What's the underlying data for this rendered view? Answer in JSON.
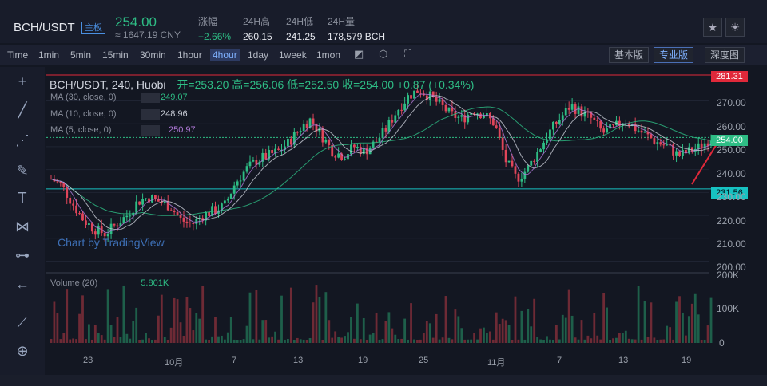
{
  "header": {
    "pair": "BCH/USDT",
    "badge": "主板",
    "price": "254.00",
    "cny": "≈ 1647.19 CNY",
    "stats": [
      {
        "label": "涨幅",
        "value": "+2.66%"
      },
      {
        "label": "24H高",
        "value": "260.15"
      },
      {
        "label": "24H低",
        "value": "241.25"
      },
      {
        "label": "24H量",
        "value": "178,579 BCH"
      }
    ]
  },
  "toolbar": {
    "timeframes": [
      "Time",
      "1min",
      "5min",
      "15min",
      "30min",
      "1hour",
      "4hour",
      "1day",
      "1week",
      "1mon"
    ],
    "active": "4hour",
    "views": [
      "基本版",
      "专业版",
      "深度图"
    ],
    "active_view": "专业版"
  },
  "legend": {
    "title": "BCH/USDT, 240, Huobi",
    "ohlc": "开=253.20  高=256.06  低=252.50  收=254.00  +0.87 (+0.34%)",
    "mas": [
      {
        "label": "MA (30, close, 0)",
        "value": "249.07",
        "color": "#2ebd85"
      },
      {
        "label": "MA (10, close, 0)",
        "value": "248.96",
        "color": "#c8ccd6"
      },
      {
        "label": "MA (5, close, 0)",
        "value": "250.97",
        "color": "#b07ad8"
      }
    ],
    "volume_label": "Volume (20)",
    "volume_value": "5.801K",
    "watermark": "Chart by TradingView"
  },
  "chart_data": {
    "type": "candlestick",
    "price_labels": {
      "top": "281.31",
      "current": "254.00",
      "support": "231.56"
    },
    "y_ticks": [
      "270.00",
      "260.00",
      "250.00",
      "240.00",
      "230.00",
      "220.00",
      "210.00",
      "200.00"
    ],
    "y_values": [
      270,
      260,
      250,
      240,
      230,
      220,
      210,
      200
    ],
    "vol_ticks": [
      "200K",
      "100K",
      "0"
    ],
    "x_ticks": [
      "23",
      "10月",
      "7",
      "13",
      "19",
      "25",
      "11月",
      "7",
      "13",
      "19"
    ],
    "close_path": [
      236,
      233,
      225,
      218,
      214,
      212,
      216,
      220,
      226,
      228,
      226,
      224,
      218,
      216,
      220,
      222,
      224,
      234,
      240,
      244,
      246,
      248,
      252,
      258,
      262,
      255,
      248,
      246,
      250,
      248,
      252,
      258,
      266,
      272,
      275,
      272,
      268,
      264,
      262,
      266,
      264,
      260,
      244,
      236,
      240,
      248,
      256,
      262,
      268,
      265,
      262,
      256,
      258,
      262,
      258,
      255,
      252,
      250,
      246,
      248,
      250,
      254
    ]
  },
  "colors": {
    "up": "#2ebd85",
    "down": "#e0455a",
    "ma30": "#2ebd85",
    "ma10": "#c8ccd6",
    "ma5": "#b07ad8"
  }
}
